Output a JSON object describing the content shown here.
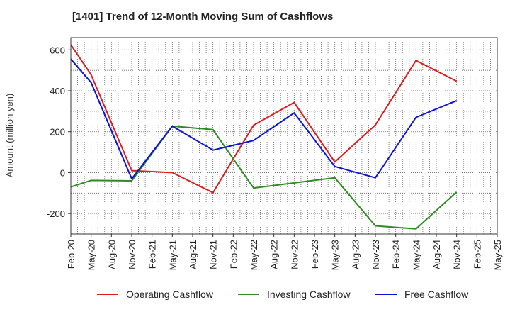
{
  "chart_data": {
    "type": "line",
    "title": "[1401]  Trend of 12-Month Moving Sum of Cashflows",
    "xlabel": "",
    "ylabel": "Amount (million yen)",
    "ylim": [
      -300,
      660
    ],
    "yticks": [
      -200,
      0,
      200,
      400,
      600
    ],
    "categories": [
      "Feb-20",
      "May-20",
      "Aug-20",
      "Nov-20",
      "Feb-21",
      "May-21",
      "Aug-21",
      "Nov-21",
      "Feb-22",
      "May-22",
      "Aug-22",
      "Nov-22",
      "Feb-23",
      "May-23",
      "Aug-23",
      "Nov-23",
      "Feb-24",
      "May-24",
      "Aug-24",
      "Nov-24",
      "Feb-25",
      "May-25"
    ],
    "grid": true,
    "legend_position": "bottom",
    "series": [
      {
        "name": "Operating Cashflow",
        "color": "#e31a1c",
        "points": [
          [
            "Feb-20",
            625
          ],
          [
            "May-20",
            478
          ],
          [
            "Nov-20",
            10
          ],
          [
            "May-21",
            0
          ],
          [
            "Nov-21",
            -98
          ],
          [
            "May-22",
            232
          ],
          [
            "Nov-22",
            343
          ],
          [
            "May-23",
            52
          ],
          [
            "Nov-23",
            233
          ],
          [
            "May-24",
            548
          ],
          [
            "Nov-24",
            447
          ]
        ]
      },
      {
        "name": "Investing Cashflow",
        "color": "#2e8b22",
        "points": [
          [
            "Feb-20",
            -70
          ],
          [
            "May-20",
            -38
          ],
          [
            "Nov-20",
            -40
          ],
          [
            "May-21",
            227
          ],
          [
            "Nov-21",
            210
          ],
          [
            "May-22",
            -75
          ],
          [
            "May-23",
            -25
          ],
          [
            "Nov-23",
            -260
          ],
          [
            "May-24",
            -275
          ],
          [
            "Nov-24",
            -95
          ]
        ]
      },
      {
        "name": "Free Cashflow",
        "color": "#0a12d6",
        "points": [
          [
            "Feb-20",
            555
          ],
          [
            "May-20",
            440
          ],
          [
            "Nov-20",
            -30
          ],
          [
            "May-21",
            227
          ],
          [
            "Nov-21",
            110
          ],
          [
            "May-22",
            157
          ],
          [
            "Nov-22",
            292
          ],
          [
            "May-23",
            30
          ],
          [
            "Nov-23",
            -25
          ],
          [
            "May-24",
            270
          ],
          [
            "Nov-24",
            352
          ]
        ]
      }
    ]
  }
}
